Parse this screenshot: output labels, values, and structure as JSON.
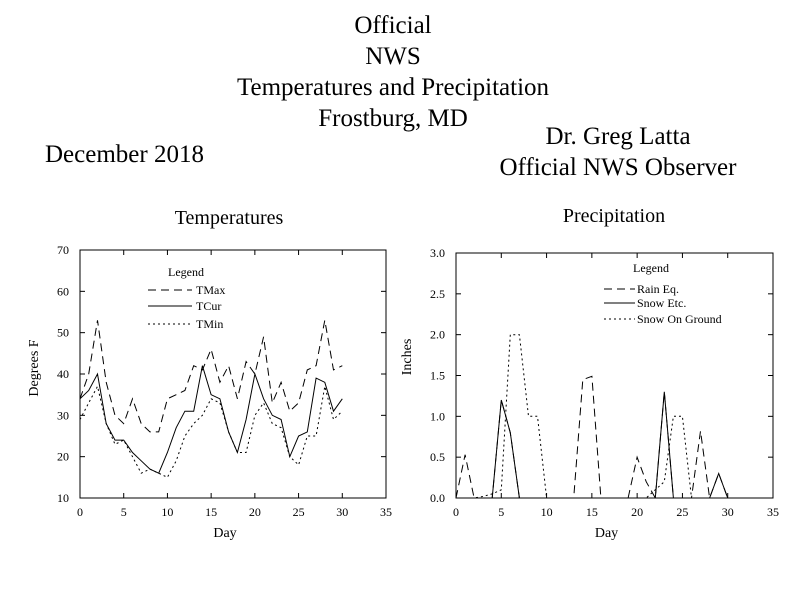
{
  "header": {
    "title_lines": [
      "Official",
      "NWS",
      "Temperatures and Precipitation",
      "Frostburg, MD"
    ],
    "month": "December 2018",
    "observer_lines": [
      "Dr. Greg Latta",
      "Official NWS Observer"
    ]
  },
  "chart_data": [
    {
      "type": "line",
      "title": "Temperatures",
      "xlabel": "Day",
      "ylabel": "Degrees F",
      "xlim": [
        0,
        35
      ],
      "ylim": [
        10,
        70
      ],
      "xticks": [
        "0",
        "5",
        "10",
        "15",
        "20",
        "25",
        "30",
        "35"
      ],
      "yticks": [
        "10",
        "20",
        "30",
        "40",
        "50",
        "60",
        "70"
      ],
      "legend": {
        "title": "Legend",
        "position": "top-center"
      },
      "series": [
        {
          "name": "TMax",
          "style": "dashed",
          "x": [
            0,
            1,
            2,
            3,
            4,
            5,
            6,
            7,
            8,
            9,
            10,
            11,
            12,
            13,
            14,
            15,
            16,
            17,
            18,
            19,
            20,
            21,
            22,
            23,
            24,
            25,
            26,
            27,
            28,
            29,
            30
          ],
          "y": [
            34,
            40,
            53,
            38,
            30,
            28,
            34,
            28,
            26,
            26,
            34,
            35,
            36,
            42,
            41,
            46,
            38,
            42,
            34,
            43,
            40,
            49,
            33,
            38,
            31,
            33,
            41,
            42,
            53,
            41,
            42
          ]
        },
        {
          "name": "TCur",
          "style": "solid",
          "x": [
            0,
            1,
            2,
            3,
            4,
            5,
            6,
            7,
            8,
            9,
            10,
            11,
            12,
            13,
            14,
            15,
            16,
            17,
            18,
            19,
            20,
            21,
            22,
            23,
            24,
            25,
            26,
            27,
            28,
            29,
            30
          ],
          "y": [
            34,
            36,
            40,
            28,
            24,
            24,
            21,
            19,
            17,
            16,
            21,
            27,
            31,
            31,
            42,
            35,
            34,
            26,
            21,
            29,
            40,
            34,
            30,
            29,
            20,
            25,
            26,
            39,
            38,
            31,
            34
          ]
        },
        {
          "name": "TMin",
          "style": "dotted",
          "x": [
            0,
            1,
            2,
            3,
            4,
            5,
            6,
            7,
            8,
            9,
            10,
            11,
            12,
            13,
            14,
            15,
            16,
            17,
            18,
            19,
            20,
            21,
            22,
            23,
            24,
            25,
            26,
            27,
            28,
            29,
            30
          ],
          "y": [
            29,
            33,
            37,
            28,
            23,
            24,
            20,
            16,
            17,
            16,
            15,
            19,
            25,
            28,
            30,
            34,
            33,
            26,
            21,
            21,
            30,
            33,
            28,
            27,
            20,
            18,
            25,
            25,
            37,
            29,
            31
          ]
        }
      ]
    },
    {
      "type": "line",
      "title": "Precipitation",
      "xlabel": "Day",
      "ylabel": "Inches",
      "xlim": [
        0,
        35
      ],
      "ylim": [
        0,
        3
      ],
      "xticks": [
        "0",
        "5",
        "10",
        "15",
        "20",
        "25",
        "30",
        "35"
      ],
      "yticks": [
        "0.0",
        "0.5",
        "1.0",
        "1.5",
        "2.0",
        "2.5",
        "3.0"
      ],
      "legend": {
        "title": "Legend",
        "position": "top-right"
      },
      "series": [
        {
          "name": "Rain Eq.",
          "style": "dashed",
          "x": [
            0,
            1,
            2,
            3,
            4,
            5,
            6,
            7,
            8,
            9,
            10,
            11,
            12,
            13,
            14,
            15,
            16,
            17,
            18,
            19,
            20,
            21,
            22,
            23,
            24,
            25,
            26,
            27,
            28,
            29,
            30
          ],
          "y": [
            0,
            0.53,
            0,
            0,
            0,
            1.2,
            0.8,
            0,
            0,
            0,
            0,
            0,
            0,
            0,
            1.45,
            1.49,
            0,
            0,
            0,
            0,
            0.5,
            0.2,
            0,
            1.3,
            0,
            0,
            0,
            0.82,
            0,
            0.3,
            0
          ]
        },
        {
          "name": "Snow Etc.",
          "style": "solid",
          "x": [
            0,
            1,
            2,
            3,
            4,
            5,
            6,
            7,
            8,
            9,
            10,
            11,
            12,
            13,
            14,
            15,
            16,
            17,
            18,
            19,
            20,
            21,
            22,
            23,
            24,
            25,
            26,
            27,
            28,
            29,
            30
          ],
          "y": [
            0,
            0,
            0,
            0,
            0,
            1.2,
            0.8,
            0,
            0,
            0,
            0,
            0,
            0,
            0,
            0,
            0,
            0,
            0,
            0,
            0,
            0,
            0,
            0,
            1.3,
            0,
            0,
            0,
            0,
            0,
            0.3,
            0
          ]
        },
        {
          "name": "Snow On Ground",
          "style": "dotted",
          "x": [
            0,
            1,
            2,
            3,
            4,
            5,
            6,
            7,
            8,
            9,
            10,
            11,
            12,
            13,
            14,
            15,
            16,
            17,
            18,
            19,
            20,
            21,
            22,
            23,
            24,
            25,
            26,
            27,
            28,
            29,
            30
          ],
          "y": [
            0,
            0,
            0,
            0.02,
            0.05,
            0.1,
            2,
            2,
            1,
            1,
            0,
            0,
            0,
            0,
            0,
            0,
            0,
            0,
            0,
            0,
            0,
            0,
            0.1,
            0.2,
            1,
            1,
            0,
            0,
            0,
            0,
            0
          ]
        }
      ]
    }
  ]
}
